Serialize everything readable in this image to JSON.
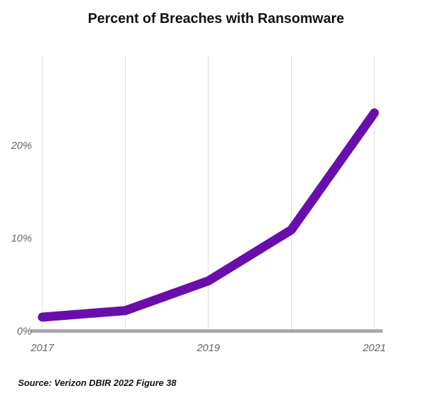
{
  "chart_data": {
    "type": "line",
    "title": "Percent of Breaches with Ransomware",
    "xlabel": "",
    "ylabel": "",
    "x": [
      2017,
      2018,
      2019,
      2020,
      2021
    ],
    "xticks": [
      "2017",
      "2019",
      "2021"
    ],
    "yticks": [
      "0%",
      "10%",
      "20%"
    ],
    "ytick_values": [
      0,
      10,
      20
    ],
    "ylim": [
      0,
      26
    ],
    "series": [
      {
        "values": [
          1.5,
          2.2,
          5.4,
          10.9,
          23.5
        ],
        "color": "#6a0dad"
      }
    ],
    "grid": "vertical",
    "legend": "none"
  },
  "source": "Source: Verizon DBIR 2022 Figure 38"
}
